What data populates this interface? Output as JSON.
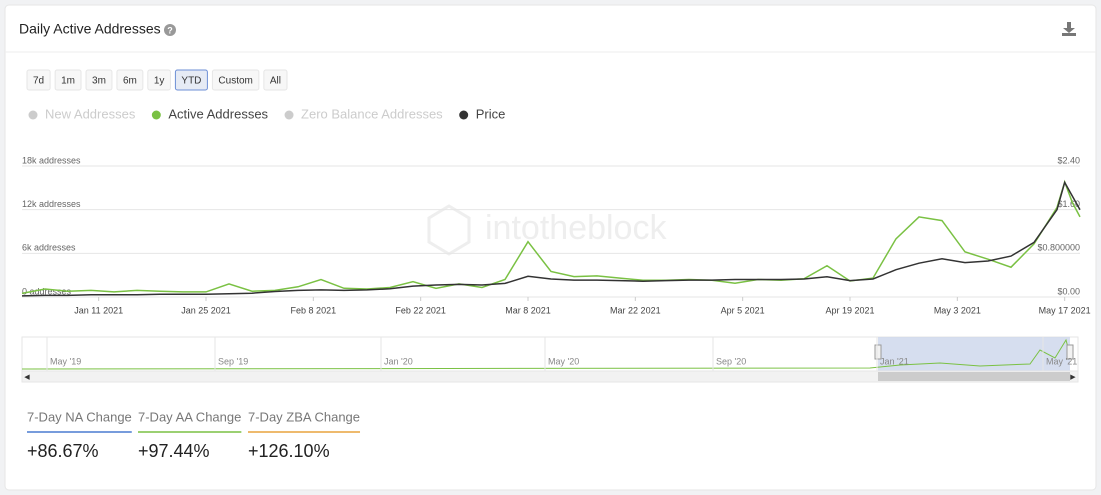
{
  "header": {
    "title": "Daily Active Addresses"
  },
  "range_buttons": [
    "7d",
    "1m",
    "3m",
    "6m",
    "1y",
    "YTD",
    "Custom",
    "All"
  ],
  "watermark": "intotheblock",
  "chart_data": {
    "type": "line",
    "x": [
      "2021-01-01",
      "2021-01-04",
      "2021-01-07",
      "2021-01-10",
      "2021-01-13",
      "2021-01-16",
      "2021-01-19",
      "2021-01-22",
      "2021-01-25",
      "2021-01-28",
      "2021-01-31",
      "2021-02-03",
      "2021-02-06",
      "2021-02-09",
      "2021-02-12",
      "2021-02-15",
      "2021-02-18",
      "2021-02-21",
      "2021-02-24",
      "2021-02-27",
      "2021-03-02",
      "2021-03-05",
      "2021-03-08",
      "2021-03-11",
      "2021-03-14",
      "2021-03-17",
      "2021-03-20",
      "2021-03-23",
      "2021-03-26",
      "2021-03-29",
      "2021-04-01",
      "2021-04-04",
      "2021-04-07",
      "2021-04-10",
      "2021-04-13",
      "2021-04-16",
      "2021-04-19",
      "2021-04-22",
      "2021-04-25",
      "2021-04-28",
      "2021-05-01",
      "2021-05-04",
      "2021-05-07",
      "2021-05-10",
      "2021-05-13",
      "2021-05-16",
      "2021-05-17",
      "2021-05-18",
      "2021-05-19"
    ],
    "series": [
      {
        "name": "New Addresses",
        "color": "#cccccc",
        "hidden": true
      },
      {
        "name": "Active Addresses",
        "color": "#7ac143",
        "values": [
          500,
          1100,
          800,
          900,
          700,
          900,
          800,
          700,
          700,
          1800,
          800,
          900,
          1400,
          2400,
          1200,
          1100,
          1300,
          2100,
          1200,
          1800,
          1300,
          2400,
          7600,
          3500,
          2800,
          2900,
          2600,
          2300,
          2300,
          2400,
          2300,
          1900,
          2400,
          2300,
          2500,
          4300,
          2200,
          2600,
          8000,
          11000,
          10500,
          6200,
          5200,
          4100,
          7300,
          12300,
          15800,
          13000,
          11000
        ]
      },
      {
        "name": "Zero Balance Addresses",
        "color": "#cccccc",
        "hidden": true
      },
      {
        "name": "Price",
        "color": "#333333",
        "axis": "y2",
        "values": [
          0.02,
          0.03,
          0.03,
          0.04,
          0.04,
          0.04,
          0.05,
          0.05,
          0.05,
          0.06,
          0.07,
          0.1,
          0.12,
          0.13,
          0.12,
          0.13,
          0.15,
          0.2,
          0.22,
          0.23,
          0.22,
          0.25,
          0.38,
          0.33,
          0.31,
          0.31,
          0.3,
          0.29,
          0.3,
          0.31,
          0.31,
          0.32,
          0.32,
          0.32,
          0.33,
          0.37,
          0.3,
          0.33,
          0.5,
          0.62,
          0.7,
          0.63,
          0.66,
          0.75,
          1.0,
          1.6,
          2.1,
          1.85,
          1.6
        ]
      }
    ],
    "xlim": [
      "2021-01-01",
      "2021-05-19"
    ],
    "xticks": [
      {
        "value": "2021-01-11",
        "label": "Jan 11 2021"
      },
      {
        "value": "2021-01-25",
        "label": "Jan 25 2021"
      },
      {
        "value": "2021-02-08",
        "label": "Feb 8 2021"
      },
      {
        "value": "2021-02-22",
        "label": "Feb 22 2021"
      },
      {
        "value": "2021-03-08",
        "label": "Mar 8 2021"
      },
      {
        "value": "2021-03-22",
        "label": "Mar 22 2021"
      },
      {
        "value": "2021-04-05",
        "label": "Apr 5 2021"
      },
      {
        "value": "2021-04-19",
        "label": "Apr 19 2021"
      },
      {
        "value": "2021-05-03",
        "label": "May 3 2021"
      },
      {
        "value": "2021-05-17",
        "label": "May 17 2021"
      }
    ],
    "ylim": [
      0,
      18000
    ],
    "yticks": [
      {
        "value": 0,
        "label": "0 addresses"
      },
      {
        "value": 6000,
        "label": "6k addresses"
      },
      {
        "value": 12000,
        "label": "12k addresses"
      },
      {
        "value": 18000,
        "label": "18k addresses"
      }
    ],
    "y2lim": [
      0,
      2.4
    ],
    "y2ticks": [
      {
        "value": 0,
        "label": "$0.00"
      },
      {
        "value": 0.8,
        "label": "$0.800000"
      },
      {
        "value": 1.6,
        "label": "$1.60"
      },
      {
        "value": 2.4,
        "label": "$2.40"
      }
    ],
    "grid": true
  },
  "navigator": {
    "labels": [
      "May '19",
      "Sep '19",
      "Jan '20",
      "May '20",
      "Sep '20",
      "Jan '21",
      "May '21"
    ]
  },
  "stats": [
    {
      "label": "7-Day NA Change",
      "value": "+86.67%",
      "color": "#4a7bd0"
    },
    {
      "label": "7-Day AA Change",
      "value": "+97.44%",
      "color": "#7ac143"
    },
    {
      "label": "7-Day ZBA Change",
      "value": "+126.10%",
      "color": "#e8a33d"
    }
  ]
}
